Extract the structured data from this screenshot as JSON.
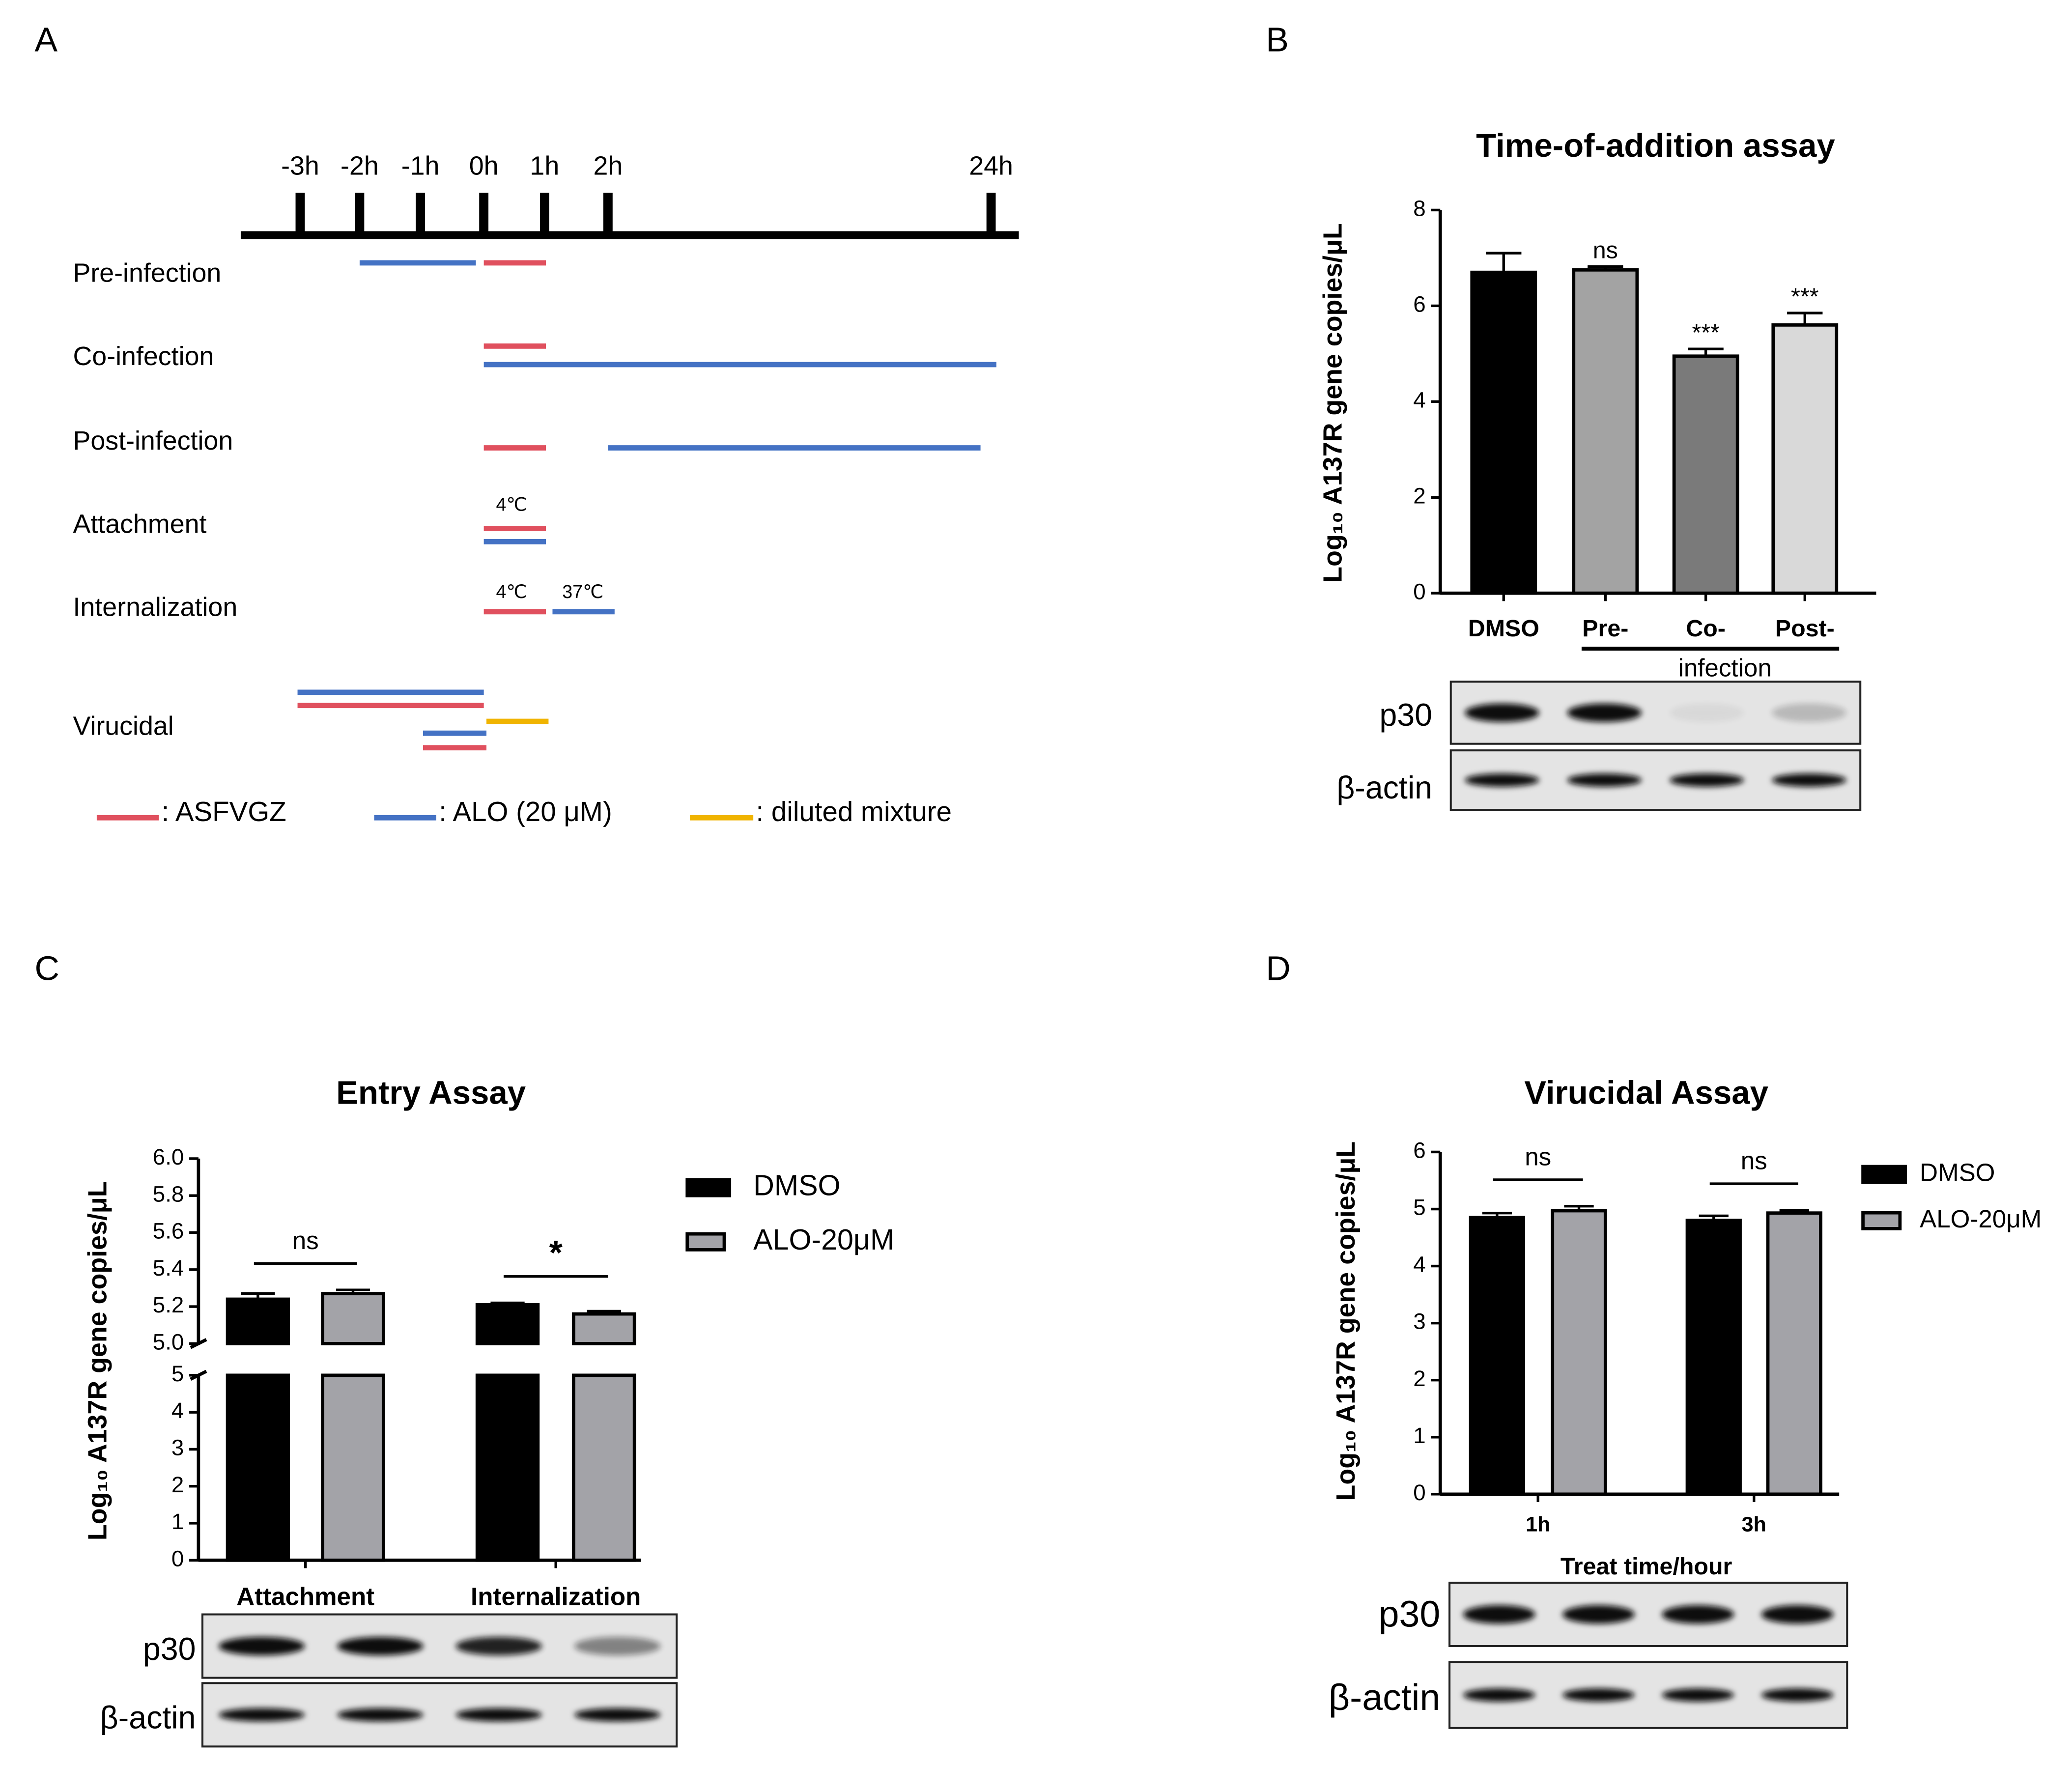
{
  "panel_labels": [
    "A",
    "B",
    "C",
    "D"
  ],
  "diagram": {
    "time_labels": [
      "-3h",
      "-2h",
      "-1h",
      "0h",
      "1h",
      "2h",
      "24h"
    ],
    "rows": [
      "Pre-infection",
      "Co-infection",
      "Post-infection",
      "Attachment",
      "Internalization",
      "Virucidal"
    ],
    "temperature_labels": [
      "4℃",
      "4℃",
      "37℃"
    ],
    "legend": [
      ": ASFVGZ",
      ": ALO (20 μM)",
      ": diluted mixture"
    ]
  },
  "chart_data": [
    {
      "type": "bar",
      "title": "Time-of-addition assay",
      "y_label": "Log₁₀ A137R gene copies/μL",
      "categories": [
        "DMSO",
        "Pre-",
        "Co-",
        "Post-"
      ],
      "group_label": "infection",
      "values": [
        6.7,
        6.75,
        4.95,
        5.6
      ],
      "errors": [
        0.4,
        0.07,
        0.15,
        0.25
      ],
      "colors": [
        "#000000",
        "#a3a3a3",
        "#7a7a7a",
        "#d9d9d9"
      ],
      "significance": [
        null,
        "ns",
        "***",
        "***"
      ],
      "ylim": [
        0,
        8
      ],
      "yticks": [
        0,
        2,
        4,
        6,
        8
      ],
      "blot_labels": [
        "p30",
        "β-actin"
      ]
    },
    {
      "type": "bar",
      "title": "Entry Assay",
      "y_label": "Log₁₀ A137R gene copies/μL",
      "categories": [
        "Attachment",
        "Internalization"
      ],
      "series": [
        {
          "name": "DMSO",
          "color": "#000000",
          "values": [
            5.24,
            5.21
          ],
          "errors": [
            0.03,
            0.01
          ]
        },
        {
          "name": "ALO-20μM",
          "color": "#a3a3a8",
          "values": [
            5.27,
            5.16
          ],
          "errors": [
            0.02,
            0.015
          ]
        }
      ],
      "significance": [
        "ns",
        "*"
      ],
      "ylim": [
        0,
        5
      ],
      "yticks": [
        0,
        1,
        2,
        3,
        4,
        5
      ],
      "ylim_upper": [
        5,
        6
      ],
      "yticks_upper": [
        {
          "value": 5,
          "label": "5.0"
        },
        5.2,
        5.4,
        5.6,
        5.8,
        {
          "value": 6,
          "label": "6.0"
        }
      ],
      "blot_labels": [
        "p30",
        "β-actin"
      ]
    },
    {
      "type": "bar",
      "title": "Virucidal Assay",
      "y_label": "Log₁₀ A137R gene copies/μL",
      "x_label": "Treat time/hour",
      "categories": [
        "1h",
        "3h"
      ],
      "series": [
        {
          "name": "DMSO",
          "color": "#000000",
          "values": [
            4.85,
            4.8
          ],
          "errors": [
            0.08,
            0.08
          ]
        },
        {
          "name": "ALO-20μM",
          "color": "#a3a3a8",
          "values": [
            4.97,
            4.93
          ],
          "errors": [
            0.08,
            0.05
          ]
        }
      ],
      "significance": [
        "ns",
        "ns"
      ],
      "ylim": [
        0,
        6
      ],
      "yticks": [
        0,
        1,
        2,
        3,
        4,
        5,
        6
      ],
      "blot_labels": [
        "p30",
        "β-actin"
      ]
    }
  ]
}
